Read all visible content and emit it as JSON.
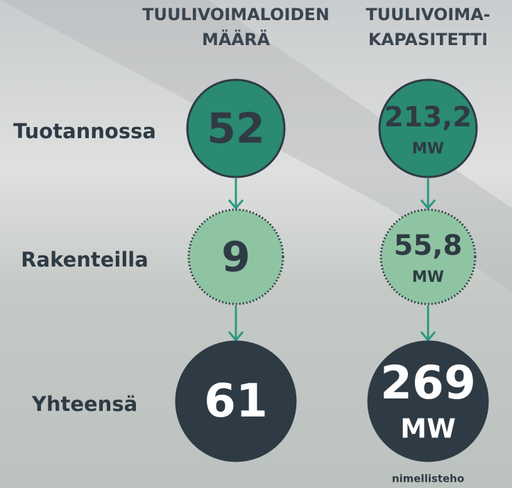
{
  "headers": [
    [
      "TUULIVOIMALOIDEN",
      "MÄÄRÄ"
    ],
    [
      "TUULIVOIMA-",
      "KAPASITETTI"
    ]
  ],
  "rows": [
    {
      "label": "Tuotannossa",
      "count": "52",
      "capacity": "213,2",
      "unit": "MW"
    },
    {
      "label": "Rakenteilla",
      "count": "9",
      "capacity": "55,8",
      "unit": "MW"
    },
    {
      "label": "Yhteensä",
      "count": "61",
      "capacity": "269",
      "unit": "MW"
    }
  ],
  "footnote": "nimellisteho"
}
